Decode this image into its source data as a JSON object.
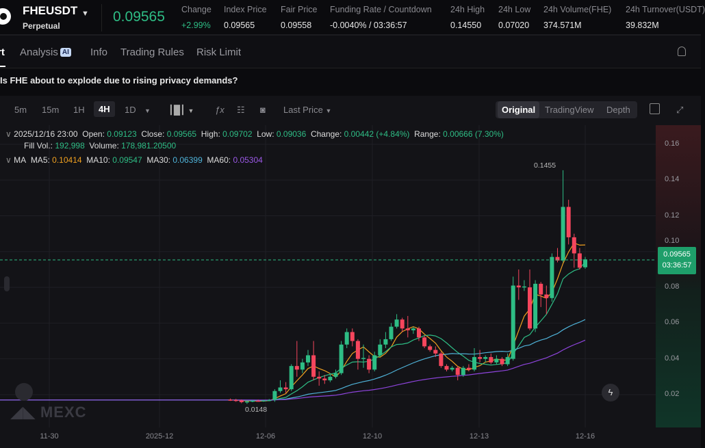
{
  "header": {
    "symbol": "FHEUSDT",
    "contract": "Perpetual",
    "last_price": "0.09565",
    "stats": [
      {
        "label": "Change",
        "value": "+2.99%"
      },
      {
        "label": "Index Price",
        "value": "0.09565"
      },
      {
        "label": "Fair Price",
        "value": "0.09558"
      },
      {
        "label": "Funding Rate / Countdown",
        "value": "-0.0040% / 03:36:57"
      },
      {
        "label": "24h High",
        "value": "0.14550"
      },
      {
        "label": "24h Low",
        "value": "0.07020"
      },
      {
        "label": "24h Volume(FHE)",
        "value": "374.571M"
      },
      {
        "label": "24h Turnover(USDT)",
        "value": "39.832M"
      }
    ]
  },
  "tabs": [
    {
      "label": "rt"
    },
    {
      "label": "Analysis",
      "badge": "AI"
    },
    {
      "label": "Info"
    },
    {
      "label": "Trading Rules"
    },
    {
      "label": "Risk Limit"
    }
  ],
  "question": "Is FHE about to explode due to rising privacy demands?",
  "toolbar": {
    "intervals": [
      "5m",
      "15m",
      "1H",
      "4H",
      "1D"
    ],
    "active_interval": "4H",
    "price_type": "Last Price",
    "views": [
      "Original",
      "TradingView",
      "Depth"
    ],
    "active_view": "Original"
  },
  "ohlc": {
    "time": "2025/12/16 23:00",
    "open_label": "Open:",
    "open": "0.09123",
    "close_label": "Close:",
    "close": "0.09565",
    "high_label": "High:",
    "high": "0.09702",
    "low_label": "Low:",
    "low": "0.09036",
    "change_label": "Change:",
    "change": "0.00442 (+4.84%)",
    "range_label": "Range:",
    "range": "0.00666 (7.30%)",
    "fill_label": "Fill Vol.:",
    "fill": "192,998",
    "vol_label": "Volume:",
    "volume": "178,981.20500"
  },
  "ma": {
    "label": "MA",
    "ma5_label": "MA5:",
    "ma5": "0.10414",
    "ma10_label": "MA10:",
    "ma10": "0.09547",
    "ma30_label": "MA30:",
    "ma30": "0.06399",
    "ma60_label": "MA60:",
    "ma60": "0.05304",
    "colors": {
      "ma5": "#f0a020",
      "ma10": "#2ebd85",
      "ma30": "#4fb3d9",
      "ma60": "#8e44dd"
    }
  },
  "price_tag": {
    "price": "0.09565",
    "countdown": "03:36:57"
  },
  "watermark": "MEXC",
  "colors": {
    "up": "#2ebd85",
    "down": "#f6465d"
  },
  "chart_data": {
    "type": "candlestick",
    "interval": "4H",
    "y_ticks": [
      "0.16",
      "0.14",
      "0.12",
      "0.10",
      "0.08",
      "0.06",
      "0.04",
      "0.02"
    ],
    "ylim": [
      0.0,
      0.17
    ],
    "x_ticks": [
      "11-30",
      "2025-12",
      "12-06",
      "12-10",
      "12-13",
      "12-16"
    ],
    "annotations": {
      "high": "0.1455",
      "low": "0.0148"
    },
    "candles": [
      [
        0.0172,
        0.0178,
        0.0165,
        0.017
      ],
      [
        0.017,
        0.0176,
        0.016,
        0.0168
      ],
      [
        0.0168,
        0.0173,
        0.0152,
        0.0158
      ],
      [
        0.0158,
        0.0166,
        0.0148,
        0.0162
      ],
      [
        0.0162,
        0.017,
        0.0158,
        0.0166
      ],
      [
        0.0166,
        0.0172,
        0.016,
        0.0165
      ],
      [
        0.0165,
        0.0171,
        0.016,
        0.0168
      ],
      [
        0.0168,
        0.0175,
        0.0163,
        0.017
      ],
      [
        0.017,
        0.023,
        0.016,
        0.022
      ],
      [
        0.022,
        0.028,
        0.021,
        0.024
      ],
      [
        0.024,
        0.027,
        0.021,
        0.023
      ],
      [
        0.023,
        0.037,
        0.022,
        0.036
      ],
      [
        0.036,
        0.05,
        0.03,
        0.034
      ],
      [
        0.034,
        0.04,
        0.032,
        0.038
      ],
      [
        0.038,
        0.045,
        0.036,
        0.042
      ],
      [
        0.042,
        0.05,
        0.028,
        0.03
      ],
      [
        0.03,
        0.033,
        0.025,
        0.029
      ],
      [
        0.029,
        0.031,
        0.026,
        0.028
      ],
      [
        0.028,
        0.032,
        0.027,
        0.03
      ],
      [
        0.03,
        0.034,
        0.029,
        0.032
      ],
      [
        0.032,
        0.05,
        0.031,
        0.048
      ],
      [
        0.048,
        0.057,
        0.046,
        0.055
      ],
      [
        0.055,
        0.057,
        0.047,
        0.05
      ],
      [
        0.05,
        0.051,
        0.034,
        0.04
      ],
      [
        0.04,
        0.048,
        0.035,
        0.0405
      ],
      [
        0.04,
        0.042,
        0.032,
        0.034
      ],
      [
        0.034,
        0.044,
        0.033,
        0.042
      ],
      [
        0.042,
        0.051,
        0.041,
        0.048
      ],
      [
        0.048,
        0.055,
        0.046,
        0.051
      ],
      [
        0.051,
        0.06,
        0.05,
        0.058
      ],
      [
        0.058,
        0.065,
        0.057,
        0.062
      ],
      [
        0.062,
        0.063,
        0.055,
        0.057
      ],
      [
        0.057,
        0.064,
        0.052,
        0.056
      ],
      [
        0.056,
        0.058,
        0.054,
        0.057
      ],
      [
        0.057,
        0.058,
        0.05,
        0.052
      ],
      [
        0.052,
        0.053,
        0.046,
        0.047
      ],
      [
        0.047,
        0.048,
        0.044,
        0.045
      ],
      [
        0.045,
        0.047,
        0.041,
        0.043
      ],
      [
        0.043,
        0.044,
        0.035,
        0.036
      ],
      [
        0.036,
        0.037,
        0.033,
        0.034
      ],
      [
        0.034,
        0.036,
        0.033,
        0.035
      ],
      [
        0.035,
        0.036,
        0.028,
        0.031
      ],
      [
        0.031,
        0.036,
        0.03,
        0.035
      ],
      [
        0.035,
        0.037,
        0.033,
        0.034
      ],
      [
        0.034,
        0.046,
        0.033,
        0.041
      ],
      [
        0.041,
        0.045,
        0.038,
        0.04
      ],
      [
        0.04,
        0.042,
        0.038,
        0.041
      ],
      [
        0.041,
        0.043,
        0.037,
        0.038
      ],
      [
        0.038,
        0.042,
        0.037,
        0.04
      ],
      [
        0.04,
        0.041,
        0.036,
        0.037
      ],
      [
        0.037,
        0.043,
        0.036,
        0.041
      ],
      [
        0.04,
        0.086,
        0.039,
        0.081
      ],
      [
        0.081,
        0.09,
        0.073,
        0.08
      ],
      [
        0.08,
        0.084,
        0.078,
        0.0805
      ],
      [
        0.08,
        0.09,
        0.056,
        0.057
      ],
      [
        0.057,
        0.084,
        0.055,
        0.082
      ],
      [
        0.082,
        0.083,
        0.069,
        0.076
      ],
      [
        0.076,
        0.081,
        0.065,
        0.074
      ],
      [
        0.074,
        0.099,
        0.072,
        0.097
      ],
      [
        0.097,
        0.102,
        0.094,
        0.095
      ],
      [
        0.095,
        0.1455,
        0.094,
        0.125
      ],
      [
        0.125,
        0.129,
        0.104,
        0.108
      ],
      [
        0.108,
        0.11,
        0.091,
        0.099
      ],
      [
        0.099,
        0.102,
        0.09,
        0.091
      ],
      [
        0.09123,
        0.09702,
        0.09036,
        0.09565
      ]
    ]
  }
}
